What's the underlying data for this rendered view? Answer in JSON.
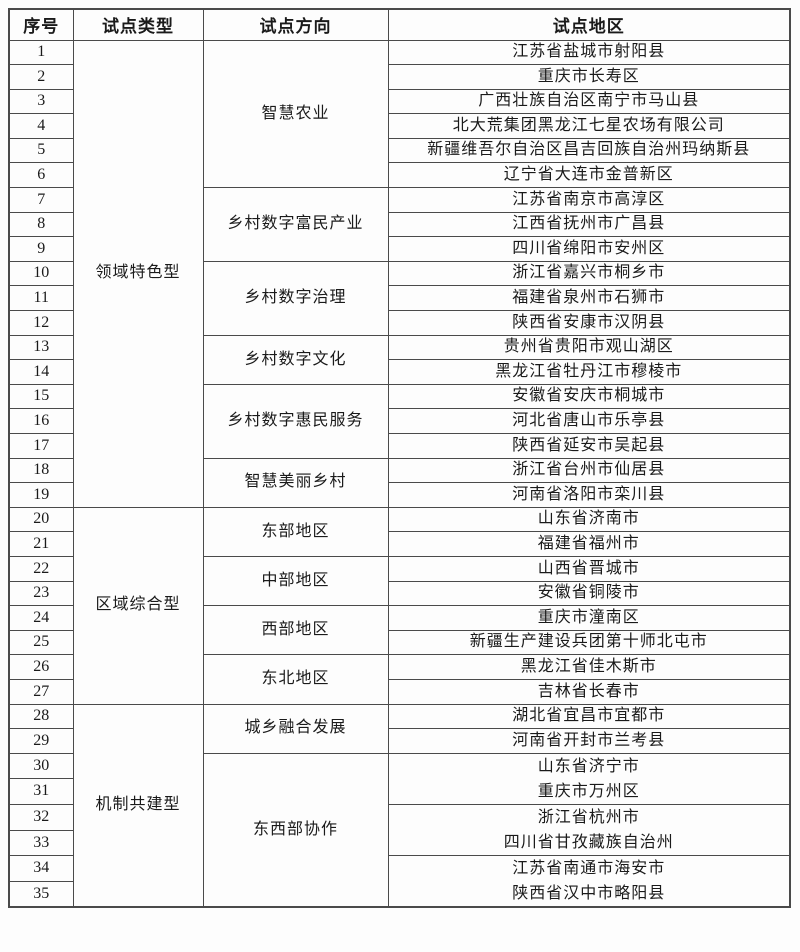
{
  "colors": {
    "border": "#4a4a4a",
    "text": "#1a1a1a",
    "background": "#fdfdfd"
  },
  "table": {
    "headers": [
      "序号",
      "试点类型",
      "试点方向",
      "试点地区"
    ],
    "groups": [
      {
        "type": "领域特色型",
        "directions": [
          {
            "direction": "智慧农业",
            "cells": [
              {
                "serials": [
                  1
                ],
                "lines": [
                  "江苏省盐城市射阳县"
                ]
              },
              {
                "serials": [
                  2
                ],
                "lines": [
                  "重庆市长寿区"
                ]
              },
              {
                "serials": [
                  3
                ],
                "lines": [
                  "广西壮族自治区南宁市马山县"
                ]
              },
              {
                "serials": [
                  4
                ],
                "lines": [
                  "北大荒集团黑龙江七星农场有限公司"
                ]
              },
              {
                "serials": [
                  5
                ],
                "lines": [
                  "新疆维吾尔自治区昌吉回族自治州玛纳斯县"
                ]
              },
              {
                "serials": [
                  6
                ],
                "lines": [
                  "辽宁省大连市金普新区"
                ]
              }
            ]
          },
          {
            "direction": "乡村数字富民产业",
            "cells": [
              {
                "serials": [
                  7
                ],
                "lines": [
                  "江苏省南京市高淳区"
                ]
              },
              {
                "serials": [
                  8
                ],
                "lines": [
                  "江西省抚州市广昌县"
                ]
              },
              {
                "serials": [
                  9
                ],
                "lines": [
                  "四川省绵阳市安州区"
                ]
              }
            ]
          },
          {
            "direction": "乡村数字治理",
            "cells": [
              {
                "serials": [
                  10
                ],
                "lines": [
                  "浙江省嘉兴市桐乡市"
                ]
              },
              {
                "serials": [
                  11
                ],
                "lines": [
                  "福建省泉州市石狮市"
                ]
              },
              {
                "serials": [
                  12
                ],
                "lines": [
                  "陕西省安康市汉阴县"
                ]
              }
            ]
          },
          {
            "direction": "乡村数字文化",
            "cells": [
              {
                "serials": [
                  13
                ],
                "lines": [
                  "贵州省贵阳市观山湖区"
                ]
              },
              {
                "serials": [
                  14
                ],
                "lines": [
                  "黑龙江省牡丹江市穆棱市"
                ]
              }
            ]
          },
          {
            "direction": "乡村数字惠民服务",
            "cells": [
              {
                "serials": [
                  15
                ],
                "lines": [
                  "安徽省安庆市桐城市"
                ]
              },
              {
                "serials": [
                  16
                ],
                "lines": [
                  "河北省唐山市乐亭县"
                ]
              },
              {
                "serials": [
                  17
                ],
                "lines": [
                  "陕西省延安市吴起县"
                ]
              }
            ]
          },
          {
            "direction": "智慧美丽乡村",
            "cells": [
              {
                "serials": [
                  18
                ],
                "lines": [
                  "浙江省台州市仙居县"
                ]
              },
              {
                "serials": [
                  19
                ],
                "lines": [
                  "河南省洛阳市栾川县"
                ]
              }
            ]
          }
        ]
      },
      {
        "type": "区域综合型",
        "directions": [
          {
            "direction": "东部地区",
            "cells": [
              {
                "serials": [
                  20
                ],
                "lines": [
                  "山东省济南市"
                ]
              },
              {
                "serials": [
                  21
                ],
                "lines": [
                  "福建省福州市"
                ]
              }
            ]
          },
          {
            "direction": "中部地区",
            "cells": [
              {
                "serials": [
                  22
                ],
                "lines": [
                  "山西省晋城市"
                ]
              },
              {
                "serials": [
                  23
                ],
                "lines": [
                  "安徽省铜陵市"
                ]
              }
            ]
          },
          {
            "direction": "西部地区",
            "cells": [
              {
                "serials": [
                  24
                ],
                "lines": [
                  "重庆市潼南区"
                ]
              },
              {
                "serials": [
                  25
                ],
                "lines": [
                  "新疆生产建设兵团第十师北屯市"
                ]
              }
            ]
          },
          {
            "direction": "东北地区",
            "cells": [
              {
                "serials": [
                  26
                ],
                "lines": [
                  "黑龙江省佳木斯市"
                ]
              },
              {
                "serials": [
                  27
                ],
                "lines": [
                  "吉林省长春市"
                ]
              }
            ]
          }
        ]
      },
      {
        "type": "机制共建型",
        "directions": [
          {
            "direction": "城乡融合发展",
            "cells": [
              {
                "serials": [
                  28
                ],
                "lines": [
                  "湖北省宜昌市宜都市"
                ]
              },
              {
                "serials": [
                  29
                ],
                "lines": [
                  "河南省开封市兰考县"
                ]
              }
            ]
          },
          {
            "direction": "东西部协作",
            "cells": [
              {
                "serials": [
                  30,
                  31
                ],
                "lines": [
                  "山东省济宁市",
                  "重庆市万州区"
                ]
              },
              {
                "serials": [
                  32,
                  33
                ],
                "lines": [
                  "浙江省杭州市",
                  "四川省甘孜藏族自治州"
                ]
              },
              {
                "serials": [
                  34,
                  35
                ],
                "lines": [
                  "江苏省南通市海安市",
                  "陕西省汉中市略阳县"
                ]
              }
            ]
          }
        ]
      }
    ]
  }
}
